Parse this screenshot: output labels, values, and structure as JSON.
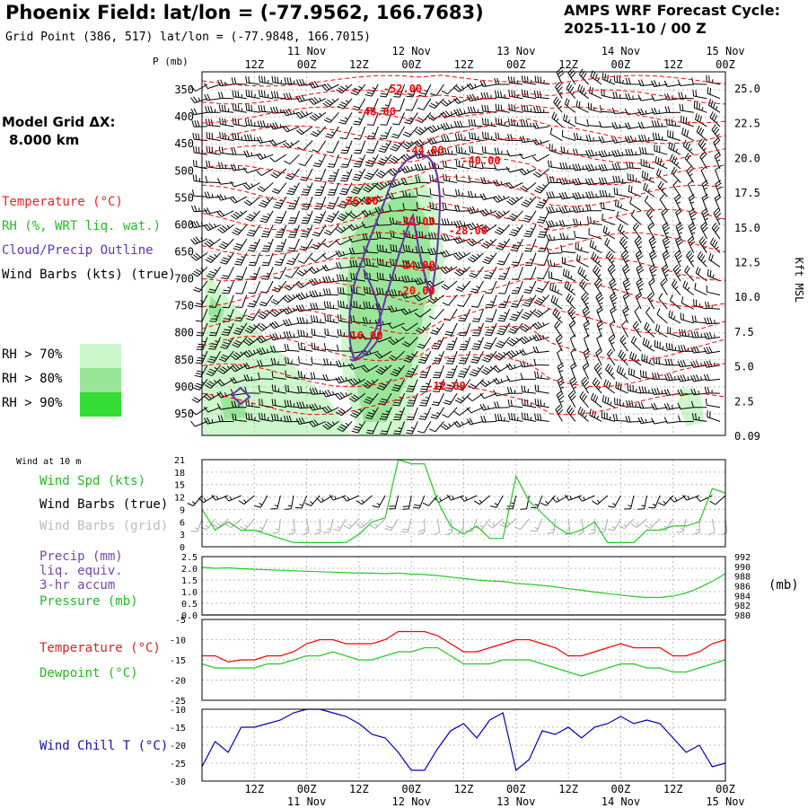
{
  "header": {
    "title": "Phoenix Field:  lat/lon = (-77.9562, 166.7683)",
    "subtitle": "Grid Point (386, 517) lat/lon = (-77.9848, 166.7015)",
    "cycle_line1": "AMPS WRF Forecast Cycle:",
    "cycle_line2": "2025-11-10 / 00  Z",
    "grid_line1": "Model Grid ΔX:",
    "grid_line2": "8.000 km"
  },
  "legend": {
    "temperature": "Temperature (°C)",
    "rh": "RH (%, WRT liq. wat.)",
    "cloud": "Cloud/Precip Outline",
    "wind_barbs": "Wind Barbs (kts) (true)",
    "rh70": "RH > 70%",
    "rh80": "RH > 80%",
    "rh90": "RH > 90%",
    "wind10m": "Wind at 10 m",
    "wind_spd": "Wind Spd (kts)",
    "wind_barbs_true": "Wind Barbs (true)",
    "wind_barbs_grid": "Wind Barbs (grid)",
    "precip1": "Precip (mm)",
    "precip2": "liq. equiv.",
    "precip3": "3-hr accum",
    "pressure": "Pressure (mb)",
    "pressure_unit": "(mb)",
    "temp2": "Temperature (°C)",
    "dewpoint": "Dewpoint (°C)",
    "windchill": "Wind Chill T (°C)",
    "p_axis": "P (mb)",
    "kft": "Kft MSL"
  },
  "colors": {
    "temperature": "#ff0000",
    "rh70": "#ccf8cc",
    "rh80": "#99e699",
    "rh90": "#33dd33",
    "cloud": "#6633aa",
    "windspd": "#22cc22",
    "pressure": "#22cc22",
    "dewpoint": "#22cc22",
    "windchill": "#0000bb",
    "grid_barbs": "#aaaaaa"
  },
  "chart_data": [
    {
      "type": "contour",
      "name": "cross-section",
      "x_range_hours": [
        0,
        120
      ],
      "time_ticks": [
        {
          "hour": 12,
          "label": "12Z",
          "day": ""
        },
        {
          "hour": 24,
          "label": "00Z",
          "day": "11 Nov"
        },
        {
          "hour": 36,
          "label": "12Z",
          "day": ""
        },
        {
          "hour": 48,
          "label": "00Z",
          "day": "12 Nov"
        },
        {
          "hour": 60,
          "label": "12Z",
          "day": ""
        },
        {
          "hour": 72,
          "label": "00Z",
          "day": "13 Nov"
        },
        {
          "hour": 84,
          "label": "12Z",
          "day": ""
        },
        {
          "hour": 96,
          "label": "00Z",
          "day": "14 Nov"
        },
        {
          "hour": 108,
          "label": "12Z",
          "day": ""
        },
        {
          "hour": 120,
          "label": "00Z",
          "day": "15 Nov"
        }
      ],
      "pressure_levels": [
        350,
        400,
        450,
        500,
        550,
        600,
        650,
        700,
        750,
        800,
        850,
        900,
        950
      ],
      "height_kft": [
        "25.0",
        "22.5",
        "20.0",
        "17.5",
        "15.0",
        "12.5",
        "10.0",
        "7.5",
        "5.0",
        "2.5",
        "0.09"
      ],
      "temperature_contour_labels": [
        {
          "value": "-52.00",
          "hour": 46,
          "p": 355
        },
        {
          "value": "-48.00",
          "hour": 40,
          "p": 397
        },
        {
          "value": "-44.00",
          "hour": 51,
          "p": 469
        },
        {
          "value": "-40.00",
          "hour": 64,
          "p": 488
        },
        {
          "value": "-36.00",
          "hour": 36,
          "p": 563
        },
        {
          "value": "-32.00",
          "hour": 49,
          "p": 601
        },
        {
          "value": "-28.00",
          "hour": 61,
          "p": 618
        },
        {
          "value": "-24.00",
          "hour": 49,
          "p": 682
        },
        {
          "value": "-20.00",
          "hour": 49,
          "p": 729
        },
        {
          "value": "-16.00",
          "hour": 37,
          "p": 812
        },
        {
          "value": "-12.00",
          "hour": 56,
          "p": 905
        }
      ]
    },
    {
      "type": "line",
      "name": "wind-speed",
      "ylabel": "Wind Spd (kts)",
      "y_ticks": [
        0,
        3,
        6,
        9,
        12,
        15,
        18,
        21
      ],
      "ylim": [
        0,
        21
      ],
      "x_hours": [
        0,
        3,
        6,
        9,
        12,
        15,
        18,
        21,
        24,
        27,
        30,
        33,
        36,
        39,
        42,
        45,
        48,
        51,
        54,
        57,
        60,
        63,
        66,
        69,
        72,
        75,
        78,
        81,
        84,
        87,
        90,
        93,
        96,
        99,
        102,
        105,
        108,
        111,
        114,
        117,
        120
      ],
      "values": [
        9,
        4,
        6,
        4,
        4,
        3,
        2,
        1,
        1,
        1,
        1,
        1,
        3,
        6,
        7,
        21,
        20,
        20,
        11,
        5,
        3,
        5,
        2,
        2,
        17,
        11,
        8,
        5,
        3,
        4,
        6,
        1,
        1,
        1,
        4,
        4,
        5,
        5,
        6,
        14,
        13
      ]
    },
    {
      "type": "line",
      "name": "pressure-precip",
      "series": [
        {
          "name": "Precip (mm)",
          "values": [
            0,
            0,
            0,
            0,
            0,
            0,
            0,
            0,
            0,
            0,
            0,
            0,
            0,
            0,
            0,
            0,
            0,
            0,
            0,
            0,
            0,
            0,
            0,
            0,
            0,
            0,
            0,
            0,
            0,
            0,
            0,
            0,
            0,
            0,
            0,
            0,
            0,
            0,
            0,
            0,
            0
          ]
        },
        {
          "name": "Pressure (mb)",
          "values": [
            989.8,
            989.6,
            989.7,
            989.5,
            989.4,
            989.3,
            989.2,
            989.1,
            989.0,
            988.9,
            988.8,
            988.7,
            988.6,
            988.6,
            988.5,
            988.6,
            988.4,
            988.3,
            988.1,
            987.8,
            987.5,
            987.2,
            987.0,
            986.9,
            986.5,
            986.3,
            986.1,
            985.8,
            985.4,
            985.1,
            984.7,
            984.4,
            984.1,
            983.8,
            983.6,
            983.6,
            983.9,
            984.5,
            985.6,
            986.9,
            988.5
          ]
        }
      ],
      "precip_ticks": [
        "0.0",
        "0.5",
        "1.0",
        "1.5",
        "2.0",
        "2.5"
      ],
      "pressure_ticks": [
        "980",
        "982",
        "984",
        "986",
        "988",
        "990",
        "992"
      ],
      "precip_ylim": [
        0,
        2.5
      ],
      "pressure_ylim": [
        980,
        992
      ]
    },
    {
      "type": "line",
      "name": "temperature-dewpoint",
      "y_ticks": [
        "-5",
        "-10",
        "-15",
        "-20",
        "-25"
      ],
      "ylim": [
        -25,
        -5
      ],
      "series": [
        {
          "name": "Temperature (°C)",
          "values": [
            -14,
            -14,
            -15.5,
            -15,
            -15,
            -14,
            -14,
            -13,
            -11,
            -10,
            -10,
            -11,
            -11,
            -11,
            -10,
            -8,
            -8,
            -8,
            -9,
            -11,
            -13,
            -13,
            -12,
            -11,
            -10,
            -10,
            -11,
            -12,
            -14,
            -14,
            -13,
            -12,
            -11,
            -12,
            -12,
            -12,
            -14,
            -14,
            -13,
            -11,
            -10
          ]
        },
        {
          "name": "Dewpoint (°C)",
          "values": [
            -16,
            -17,
            -17,
            -17,
            -17,
            -16,
            -16,
            -15,
            -14,
            -14,
            -13,
            -14,
            -15,
            -15,
            -14,
            -13,
            -13,
            -12,
            -12,
            -14,
            -16,
            -16,
            -16,
            -15,
            -15,
            -15,
            -16,
            -17,
            -18,
            -19,
            -18,
            -17,
            -16,
            -16,
            -17,
            -17,
            -18,
            -18,
            -17,
            -16,
            -15
          ]
        }
      ]
    },
    {
      "type": "line",
      "name": "wind-chill",
      "ylabel": "Wind Chill T (°C)",
      "y_ticks": [
        "-10",
        "-15",
        "-20",
        "-25",
        "-30"
      ],
      "ylim": [
        -30,
        -10
      ],
      "values": [
        -26,
        -19,
        -22,
        -15,
        -15,
        -14,
        -13,
        -11,
        -10,
        -10,
        -11,
        -12,
        -14,
        -17,
        -18,
        -22,
        -27,
        -27,
        -21,
        -16,
        -14,
        -18,
        -13,
        -11,
        -27,
        -24,
        -16,
        -17,
        -15,
        -18,
        -15,
        -14,
        -12,
        -14,
        -13,
        -14,
        -18,
        -22,
        -20,
        -26,
        -25
      ]
    }
  ]
}
